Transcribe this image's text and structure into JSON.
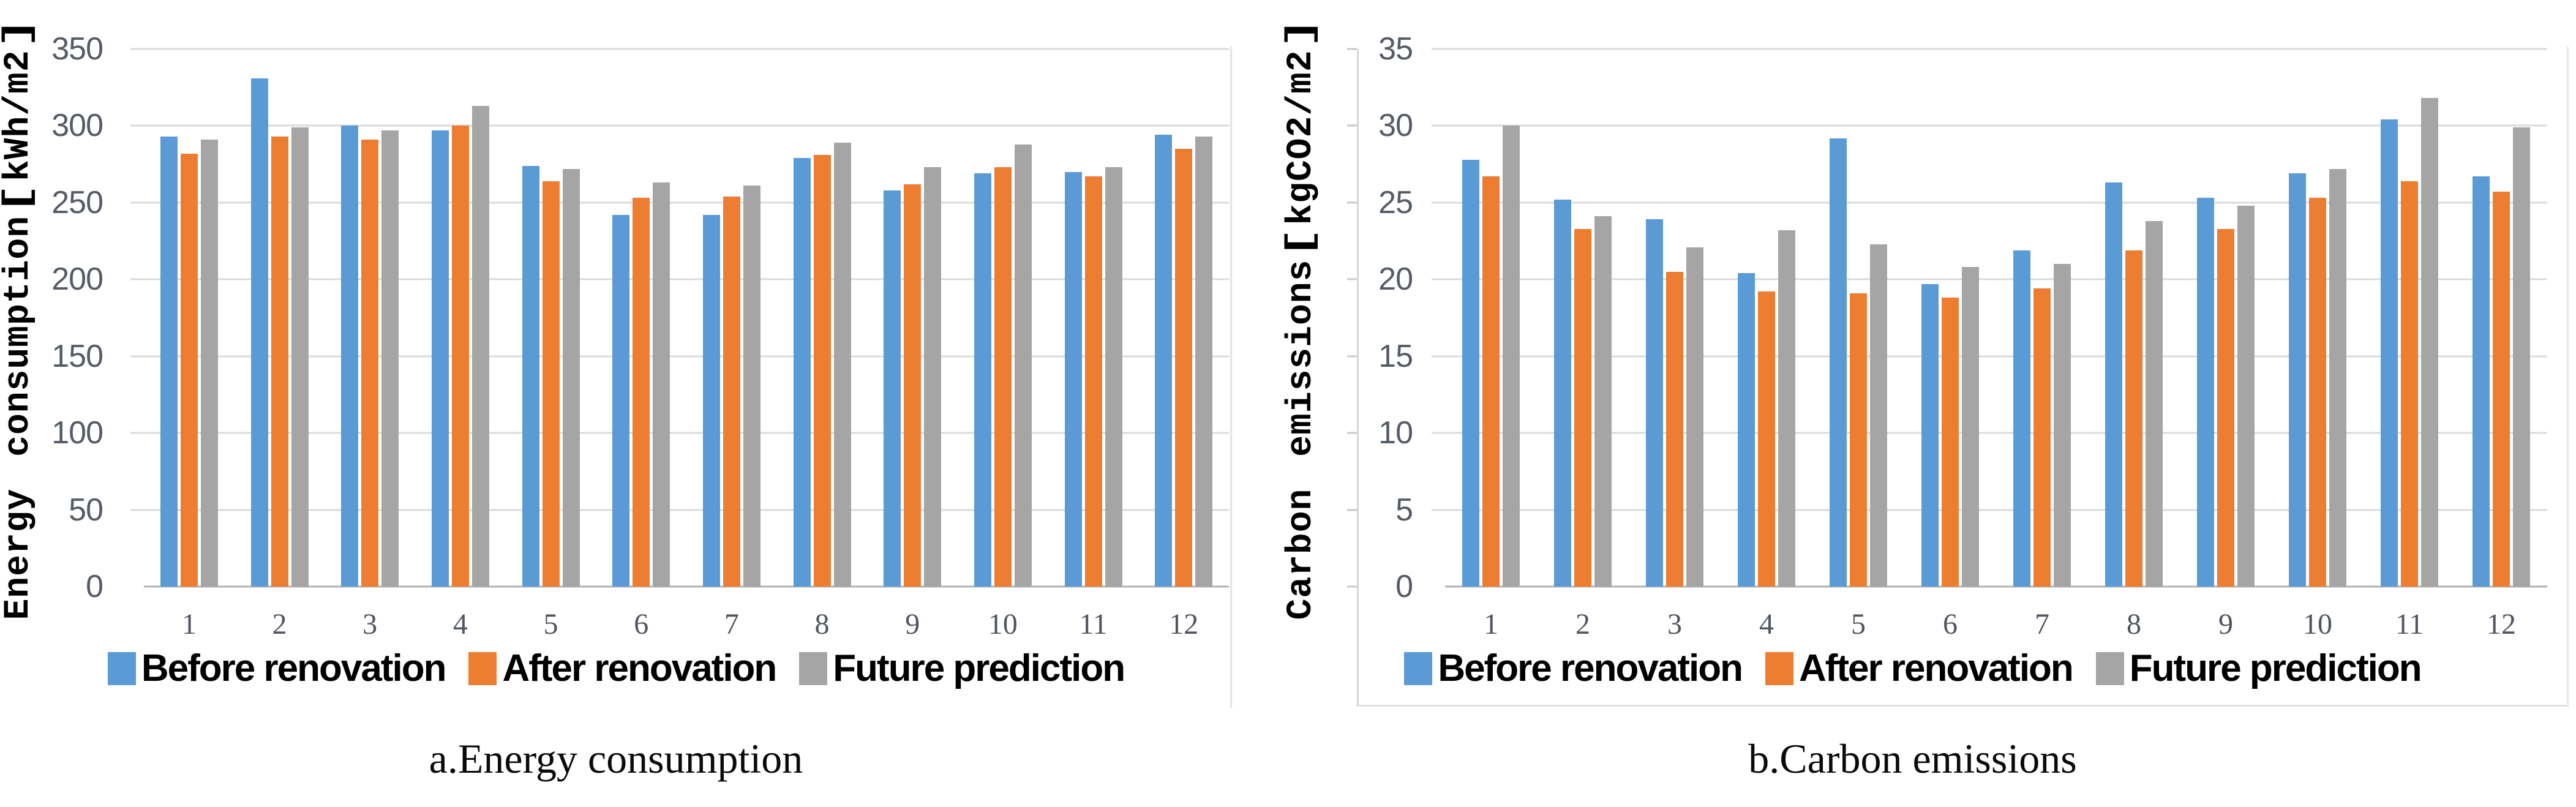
{
  "palette": {
    "before": "#5B9BD5",
    "after": "#ED7D31",
    "future": "#A5A5A5",
    "gridline": "#DBDBDB",
    "axis_line": "#B3B3B3",
    "tick_label": "#565C66",
    "panel_border": "#E3E3E3"
  },
  "chart_data": [
    {
      "type": "bar",
      "caption": "a.Energy consumption",
      "y_axis_title": "Energy consumption【kWh/m2】",
      "ylim": [
        0,
        350
      ],
      "y_step": 50,
      "y_tick_labels": [
        "0",
        "50",
        "100",
        "150",
        "200",
        "250",
        "300",
        "350"
      ],
      "categories": [
        "1",
        "2",
        "3",
        "4",
        "5",
        "6",
        "7",
        "8",
        "9",
        "10",
        "11",
        "12"
      ],
      "grid": true,
      "legend_position": "bottom",
      "series": [
        {
          "name": "Before renovation",
          "key": "before-renovation",
          "color": "#5B9BD5",
          "values": [
            293,
            331,
            300,
            297,
            274,
            242,
            242,
            279,
            258,
            269,
            270,
            294
          ]
        },
        {
          "name": "After renovation",
          "key": "after-renovation",
          "color": "#ED7D31",
          "values": [
            282,
            293,
            291,
            300,
            264,
            253,
            254,
            281,
            262,
            273,
            267,
            285
          ]
        },
        {
          "name": "Future prediction",
          "key": "future-prediction",
          "color": "#A5A5A5",
          "values": [
            291,
            299,
            297,
            313,
            272,
            263,
            261,
            289,
            273,
            288,
            273,
            293
          ]
        }
      ]
    },
    {
      "type": "bar",
      "caption": "b.Carbon emissions",
      "y_axis_title": "Carbon emissions【kgCO2/m2】",
      "ylim": [
        0,
        35
      ],
      "y_step": 5,
      "y_tick_labels": [
        "0",
        "5",
        "10",
        "15",
        "20",
        "25",
        "30",
        "35"
      ],
      "categories": [
        "1",
        "2",
        "3",
        "4",
        "5",
        "6",
        "7",
        "8",
        "9",
        "10",
        "11",
        "12"
      ],
      "grid": true,
      "legend_position": "bottom",
      "series": [
        {
          "name": "Before renovation",
          "key": "before-renovation",
          "color": "#5B9BD5",
          "values": [
            27.8,
            25.2,
            23.9,
            20.4,
            29.2,
            19.7,
            21.9,
            26.3,
            25.3,
            26.9,
            30.4,
            26.7
          ]
        },
        {
          "name": "After renovation",
          "key": "after-renovation",
          "color": "#ED7D31",
          "values": [
            26.7,
            23.3,
            20.5,
            19.2,
            19.1,
            18.8,
            19.4,
            21.9,
            23.3,
            25.3,
            26.4,
            25.7
          ]
        },
        {
          "name": "Future prediction",
          "key": "future-prediction",
          "color": "#A5A5A5",
          "values": [
            30.0,
            24.1,
            22.1,
            23.2,
            22.3,
            20.8,
            21.0,
            23.8,
            24.8,
            27.2,
            31.8,
            29.9
          ]
        }
      ]
    }
  ]
}
